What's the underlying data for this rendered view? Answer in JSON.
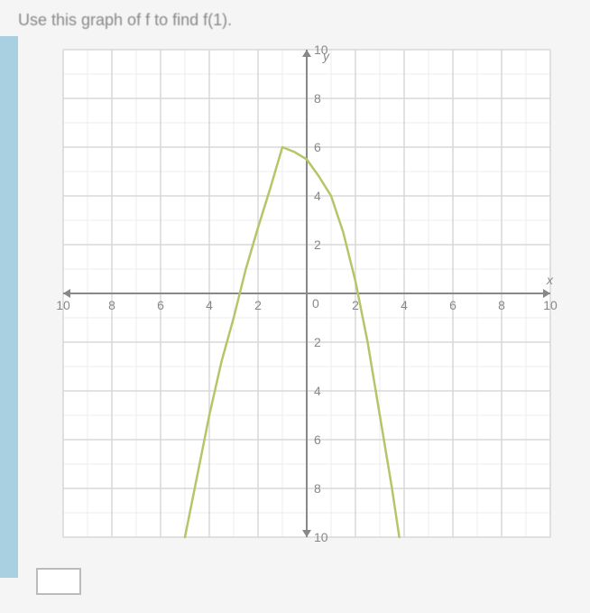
{
  "question": {
    "text": "Use this graph of f to find f(1)."
  },
  "chart": {
    "type": "line",
    "xlim": [
      -10,
      10
    ],
    "ylim": [
      -10,
      10
    ],
    "xtick_step": 2,
    "ytick_step": 2,
    "minor_grid_step": 1,
    "x_axis_label": "x",
    "y_axis_label": "y",
    "x_ticks": [
      -10,
      -8,
      -6,
      -4,
      -2,
      0,
      2,
      4,
      6,
      8,
      10
    ],
    "y_ticks": [
      -10,
      -8,
      -6,
      -4,
      -2,
      2,
      4,
      6,
      8,
      10
    ],
    "background_color": "#ffffff",
    "major_grid_color": "#d8d8d8",
    "minor_grid_color": "#ececec",
    "axis_color": "#888888",
    "tick_label_color": "#888888",
    "tick_fontsize": 14,
    "curve": {
      "color": "#b8c468",
      "width": 2.5,
      "vertex": [
        -1,
        6
      ],
      "points": [
        [
          -5,
          -10
        ],
        [
          -4.5,
          -7.5
        ],
        [
          -4,
          -5
        ],
        [
          -3.5,
          -2.8
        ],
        [
          -3,
          -1
        ],
        [
          -2.5,
          1
        ],
        [
          -2,
          2.7
        ],
        [
          -1.5,
          4.3
        ],
        [
          -1,
          6
        ],
        [
          -0.5,
          5.8
        ],
        [
          0,
          5.5
        ],
        [
          0.5,
          4.8
        ],
        [
          1,
          4
        ],
        [
          1.5,
          2.5
        ],
        [
          2,
          0.5
        ],
        [
          2.5,
          -2
        ],
        [
          3,
          -5
        ],
        [
          3.5,
          -8
        ],
        [
          3.8,
          -10
        ]
      ]
    }
  },
  "answer": {
    "value": ""
  }
}
